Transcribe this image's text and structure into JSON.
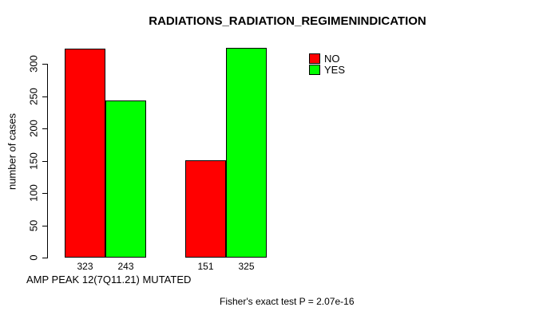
{
  "chart_data": {
    "type": "bar",
    "title": "RADIATIONS_RADIATION_REGIMENINDICATION",
    "ylabel": "number of cases",
    "xlabel": "AMP PEAK 12(7Q11.21) MUTATED",
    "footnote": "Fisher's exact test P = 2.07e-16",
    "ylim": [
      0,
      350
    ],
    "yticks": [
      0,
      50,
      100,
      150,
      200,
      250,
      300
    ],
    "grid": false,
    "legend_position": "top-right",
    "groups": 2,
    "series": [
      {
        "name": "NO",
        "color": "#ff0000",
        "values": [
          323,
          151
        ]
      },
      {
        "name": "YES",
        "color": "#00ff00",
        "values": [
          243,
          325
        ]
      }
    ],
    "bar_value_labels": [
      "323",
      "243",
      "151",
      "325"
    ],
    "colors": {
      "no": "#ff0000",
      "yes": "#00ff00",
      "axis": "#000000",
      "background": "#ffffff"
    }
  }
}
